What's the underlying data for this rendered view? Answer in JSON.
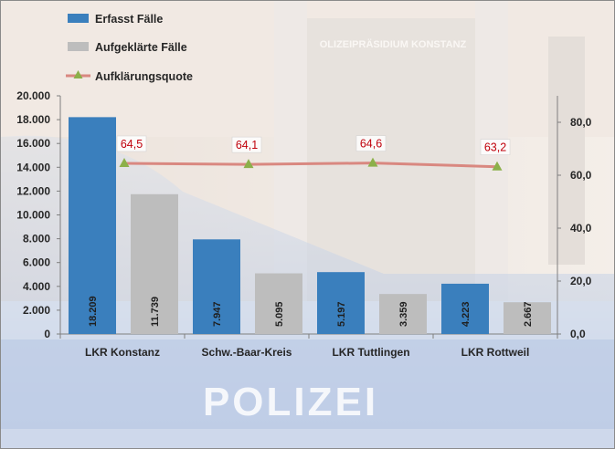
{
  "background": {
    "building_sign": "OLIZEIPRÄSIDIUM KONSTANZ",
    "car_lettering": "POLIZEI"
  },
  "colors": {
    "erfasst": "#3a7fbd",
    "aufgeklaert": "#bdbdbd",
    "quote_line": "#d98880",
    "quote_marker": "#8cb04a",
    "quote_label": "#c0000b"
  },
  "chart_data": {
    "type": "bar",
    "categories": [
      "LKR Konstanz",
      "Schw.-Baar-Kreis",
      "LKR Tuttlingen",
      "LKR Rottweil"
    ],
    "series": [
      {
        "name": "Erfasst Fälle",
        "type": "bar",
        "axis": "left",
        "values": [
          18209,
          7947,
          5197,
          4223
        ],
        "labels": [
          "18.209",
          "7.947",
          "5.197",
          "4.223"
        ]
      },
      {
        "name": "Aufgeklärte Fälle",
        "type": "bar",
        "axis": "left",
        "values": [
          11739,
          5095,
          3359,
          2667
        ],
        "labels": [
          "11.739",
          "5.095",
          "3.359",
          "2.667"
        ]
      },
      {
        "name": "Aufklärungsquote",
        "type": "line",
        "axis": "right",
        "values": [
          64.5,
          64.1,
          64.6,
          63.2
        ],
        "labels": [
          "64,5",
          "64,1",
          "64,6",
          "63,2"
        ]
      }
    ],
    "y_left": {
      "min": 0,
      "max": 20000,
      "ticks": [
        "0",
        "2.000",
        "4.000",
        "6.000",
        "8.000",
        "10.000",
        "12.000",
        "14.000",
        "16.000",
        "18.000",
        "20.000"
      ]
    },
    "y_right": {
      "min": 0,
      "max": 90,
      "ticks": [
        "0,0",
        "20,0",
        "40,0",
        "60,0",
        "80,0"
      ]
    },
    "legend_position": "top-left",
    "grid": false
  }
}
